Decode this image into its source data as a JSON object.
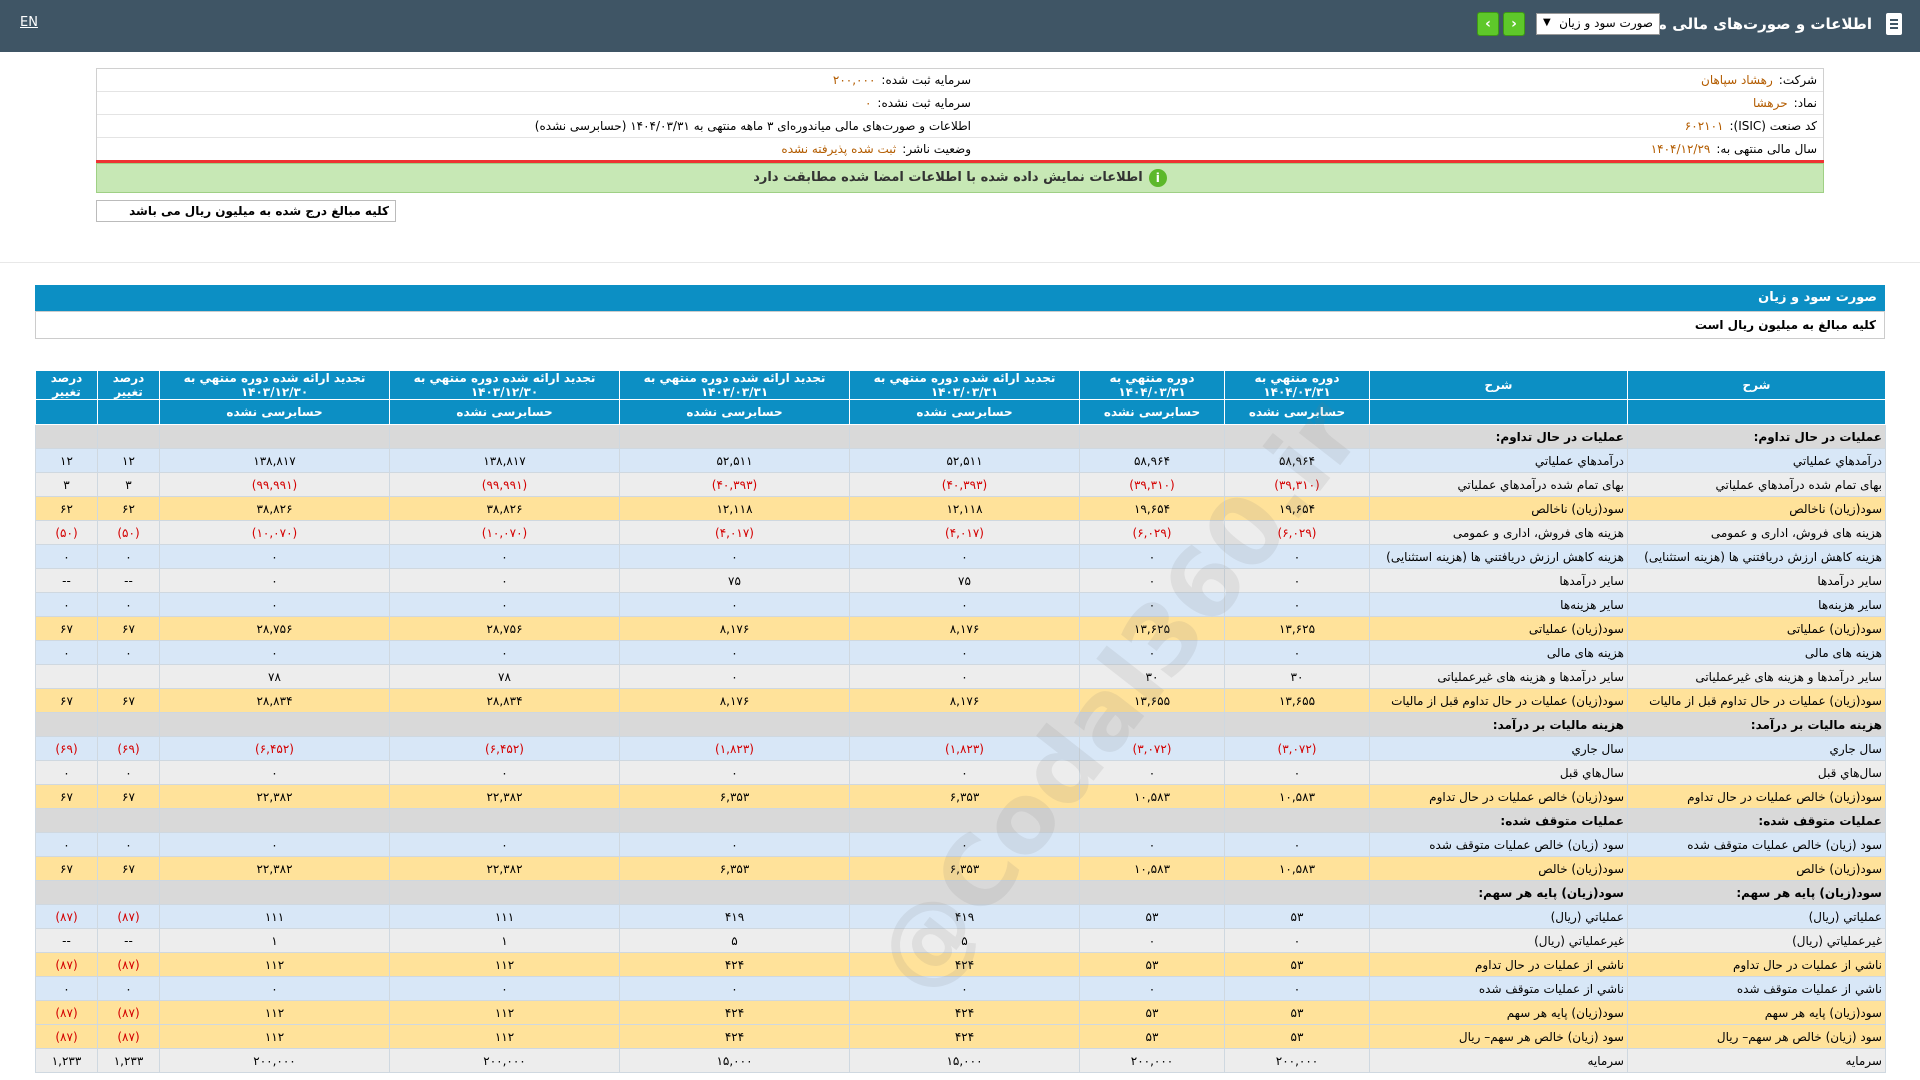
{
  "header": {
    "lang": "EN",
    "title": "اطلاعات و صورت‌های مالی میاندوره‌ای",
    "report_select": "صورت سود و زیان",
    "prev_label": "›",
    "next_label": "‹"
  },
  "info": {
    "company_label": "شرکت:",
    "company_value": "رهشاد سپاهان",
    "capital_label": "سرمایه ثبت شده:",
    "capital_value": "۲۰۰,۰۰۰",
    "symbol_label": "نماد:",
    "symbol_value": "حرهشا",
    "unreg_capital_label": "سرمایه ثبت نشده:",
    "unreg_capital_value": "۰",
    "isic_label": "کد صنعت (ISIC):",
    "isic_value": "۶۰۲۱۰۱",
    "statement_text": "اطلاعات و صورت‌های مالی میاندوره‌ای ۳ ماهه منتهی به ۱۴۰۴/۰۳/۳۱ (حسابرسی نشده)",
    "fiscal_label": "سال مالی منتهی به:",
    "fiscal_value": "۱۴۰۴/۱۲/۲۹",
    "publisher_label": "وضعیت ناشر:",
    "publisher_value": "ثبت شده پذیرفته نشده"
  },
  "notice": "اطلاعات نمایش داده شده با اطلاعات امضا شده مطابقت دارد",
  "units_note": "کلیه مبالغ درج شده به میلیون ریال می باشد",
  "section": {
    "title": "صورت سود و زیان",
    "subtitle": "کلیه مبالغ به میلیون ریال است"
  },
  "watermark": "@Codal360.ir",
  "table": {
    "headers": [
      {
        "top": "شرح",
        "bottom": ""
      },
      {
        "top": "شرح",
        "bottom": ""
      },
      {
        "top": "دوره منتهي به ۱۴۰۴/۰۳/۳۱",
        "bottom": "حسابرسی نشده"
      },
      {
        "top": "دوره منتهي به ۱۴۰۴/۰۳/۳۱",
        "bottom": "حسابرسی نشده"
      },
      {
        "top": "تجدید ارائه شده دوره منتهي به ۱۴۰۳/۰۳/۳۱",
        "bottom": "حسابرسی نشده"
      },
      {
        "top": "تجدید ارائه شده دوره منتهي به ۱۴۰۳/۰۳/۳۱",
        "bottom": "حسابرسی نشده"
      },
      {
        "top": "تجدید ارائه شده دوره منتهي به ۱۴۰۳/۱۲/۳۰",
        "bottom": "حسابرسی نشده"
      },
      {
        "top": "تجدید ارائه شده دوره منتهي به ۱۴۰۳/۱۲/۳۰",
        "bottom": "حسابرسی نشده"
      },
      {
        "top": "درصد تغییر",
        "bottom": ""
      },
      {
        "top": "درصد تغییر",
        "bottom": ""
      }
    ],
    "rows": [
      {
        "style": "sec",
        "cells": [
          "عملیات در حال تداوم:",
          "عملیات در حال تداوم:",
          "",
          "",
          "",
          "",
          "",
          "",
          "",
          ""
        ]
      },
      {
        "style": "blue",
        "cells": [
          "درآمدهاي عملياتي",
          "درآمدهاي عملياتي",
          "۵۸,۹۶۴",
          "۵۸,۹۶۴",
          "۵۲,۵۱۱",
          "۵۲,۵۱۱",
          "۱۳۸,۸۱۷",
          "۱۳۸,۸۱۷",
          "۱۲",
          "۱۲"
        ]
      },
      {
        "style": "gray",
        "cells": [
          "بهاى تمام شده درآمدهاي عملياتي",
          "بهاى تمام شده درآمدهاي عملياتي",
          "(۳۹,۳۱۰)",
          "(۳۹,۳۱۰)",
          "(۴۰,۳۹۳)",
          "(۴۰,۳۹۳)",
          "(۹۹,۹۹۱)",
          "(۹۹,۹۹۱)",
          "۳",
          "۳"
        ]
      },
      {
        "style": "gold",
        "cells": [
          "سود(زيان) ناخالص",
          "سود(زيان) ناخالص",
          "۱۹,۶۵۴",
          "۱۹,۶۵۴",
          "۱۲,۱۱۸",
          "۱۲,۱۱۸",
          "۳۸,۸۲۶",
          "۳۸,۸۲۶",
          "۶۲",
          "۶۲"
        ]
      },
      {
        "style": "gray",
        "cells": [
          "هزينه هاى فروش، ادارى و عمومى",
          "هزينه هاى فروش، ادارى و عمومى",
          "(۶,۰۲۹)",
          "(۶,۰۲۹)",
          "(۴,۰۱۷)",
          "(۴,۰۱۷)",
          "(۱۰,۰۷۰)",
          "(۱۰,۰۷۰)",
          "(۵۰)",
          "(۵۰)"
        ]
      },
      {
        "style": "blue",
        "cells": [
          "هزینه کاهش ارزش دریافتني ها (هزینه استثنایی)",
          "هزینه کاهش ارزش دریافتني ها (هزینه استثنایی)",
          "۰",
          "۰",
          "۰",
          "۰",
          "۰",
          "۰",
          "۰",
          "۰"
        ]
      },
      {
        "style": "gray",
        "cells": [
          "ساير درآمدها",
          "ساير درآمدها",
          "۰",
          "۰",
          "۷۵",
          "۷۵",
          "۰",
          "۰",
          "--",
          "--"
        ]
      },
      {
        "style": "blue",
        "cells": [
          "سایر هزینه‌ها",
          "سایر هزینه‌ها",
          "۰",
          "۰",
          "۰",
          "۰",
          "۰",
          "۰",
          "۰",
          "۰"
        ]
      },
      {
        "style": "gold",
        "cells": [
          "سود(زيان) عملياتى",
          "سود(زيان) عملياتى",
          "۱۳,۶۲۵",
          "۱۳,۶۲۵",
          "۸,۱۷۶",
          "۸,۱۷۶",
          "۲۸,۷۵۶",
          "۲۸,۷۵۶",
          "۶۷",
          "۶۷"
        ]
      },
      {
        "style": "blue",
        "cells": [
          "هزينه هاى مالى",
          "هزينه هاى مالى",
          "۰",
          "۰",
          "۰",
          "۰",
          "۰",
          "۰",
          "۰",
          "۰"
        ]
      },
      {
        "style": "gray",
        "cells": [
          "ساير درآمدها و هزينه هاى غيرعملياتى",
          "ساير درآمدها و هزينه هاى غيرعملياتى",
          "۳۰",
          "۳۰",
          "۰",
          "۰",
          "۷۸",
          "۷۸",
          "",
          ""
        ]
      },
      {
        "style": "gold",
        "cells": [
          "سود(زيان) عمليات در حال تداوم قبل از ماليات",
          "سود(زيان) عمليات در حال تداوم قبل از ماليات",
          "۱۳,۶۵۵",
          "۱۳,۶۵۵",
          "۸,۱۷۶",
          "۸,۱۷۶",
          "۲۸,۸۳۴",
          "۲۸,۸۳۴",
          "۶۷",
          "۶۷"
        ]
      },
      {
        "style": "sec",
        "cells": [
          "هزينه ماليات بر درآمد:",
          "هزينه ماليات بر درآمد:",
          "",
          "",
          "",
          "",
          "",
          "",
          "",
          ""
        ]
      },
      {
        "style": "blue",
        "cells": [
          "سال جاري",
          "سال جاري",
          "(۳,۰۷۲)",
          "(۳,۰۷۲)",
          "(۱,۸۲۳)",
          "(۱,۸۲۳)",
          "(۶,۴۵۲)",
          "(۶,۴۵۲)",
          "(۶۹)",
          "(۶۹)"
        ]
      },
      {
        "style": "gray",
        "cells": [
          "سال‌هاي قبل",
          "سال‌هاي قبل",
          "۰",
          "۰",
          "۰",
          "۰",
          "۰",
          "۰",
          "۰",
          "۰"
        ]
      },
      {
        "style": "gold",
        "cells": [
          "سود(زيان) خالص عمليات در حال تداوم",
          "سود(زيان) خالص عمليات در حال تداوم",
          "۱۰,۵۸۳",
          "۱۰,۵۸۳",
          "۶,۳۵۳",
          "۶,۳۵۳",
          "۲۲,۳۸۲",
          "۲۲,۳۸۲",
          "۶۷",
          "۶۷"
        ]
      },
      {
        "style": "sec",
        "cells": [
          "عمليات متوقف شده:",
          "عمليات متوقف شده:",
          "",
          "",
          "",
          "",
          "",
          "",
          "",
          ""
        ]
      },
      {
        "style": "blue",
        "cells": [
          "سود (زيان) خالص عمليات متوقف شده",
          "سود (زيان) خالص عمليات متوقف شده",
          "۰",
          "۰",
          "۰",
          "۰",
          "۰",
          "۰",
          "۰",
          "۰"
        ]
      },
      {
        "style": "gold",
        "cells": [
          "سود(زيان) خالص",
          "سود(زيان) خالص",
          "۱۰,۵۸۳",
          "۱۰,۵۸۳",
          "۶,۳۵۳",
          "۶,۳۵۳",
          "۲۲,۳۸۲",
          "۲۲,۳۸۲",
          "۶۷",
          "۶۷"
        ]
      },
      {
        "style": "sec",
        "cells": [
          "سود(زيان) پايه هر سهم:",
          "سود(زيان) پايه هر سهم:",
          "",
          "",
          "",
          "",
          "",
          "",
          "",
          ""
        ]
      },
      {
        "style": "blue",
        "cells": [
          "عملياتي (ريال)",
          "عملياتي (ريال)",
          "۵۳",
          "۵۳",
          "۴۱۹",
          "۴۱۹",
          "۱۱۱",
          "۱۱۱",
          "(۸۷)",
          "(۸۷)"
        ]
      },
      {
        "style": "gray",
        "cells": [
          "غيرعملياتي (ريال)",
          "غيرعملياتي (ريال)",
          "۰",
          "۰",
          "۵",
          "۵",
          "۱",
          "۱",
          "--",
          "--"
        ]
      },
      {
        "style": "gold",
        "cells": [
          "ناشي از عمليات در حال تداوم",
          "ناشي از عمليات در حال تداوم",
          "۵۳",
          "۵۳",
          "۴۲۴",
          "۴۲۴",
          "۱۱۲",
          "۱۱۲",
          "(۸۷)",
          "(۸۷)"
        ]
      },
      {
        "style": "blue",
        "cells": [
          "ناشي از عمليات متوقف شده",
          "ناشي از عمليات متوقف شده",
          "۰",
          "۰",
          "۰",
          "۰",
          "۰",
          "۰",
          "۰",
          "۰"
        ]
      },
      {
        "style": "gold",
        "cells": [
          "سود(زيان) پايه هر سهم",
          "سود(زيان) پايه هر سهم",
          "۵۳",
          "۵۳",
          "۴۲۴",
          "۴۲۴",
          "۱۱۲",
          "۱۱۲",
          "(۸۷)",
          "(۸۷)"
        ]
      },
      {
        "style": "gold",
        "cells": [
          "سود (زيان) خالص هر سهم– ريال",
          "سود (زيان) خالص هر سهم– ريال",
          "۵۳",
          "۵۳",
          "۴۲۴",
          "۴۲۴",
          "۱۱۲",
          "۱۱۲",
          "(۸۷)",
          "(۸۷)"
        ]
      },
      {
        "style": "gray",
        "cells": [
          "سرمايه",
          "سرمايه",
          "۲۰۰,۰۰۰",
          "۲۰۰,۰۰۰",
          "۱۵,۰۰۰",
          "۱۵,۰۰۰",
          "۲۰۰,۰۰۰",
          "۲۰۰,۰۰۰",
          "۱,۲۳۳",
          "۱,۲۳۳"
        ]
      }
    ]
  }
}
